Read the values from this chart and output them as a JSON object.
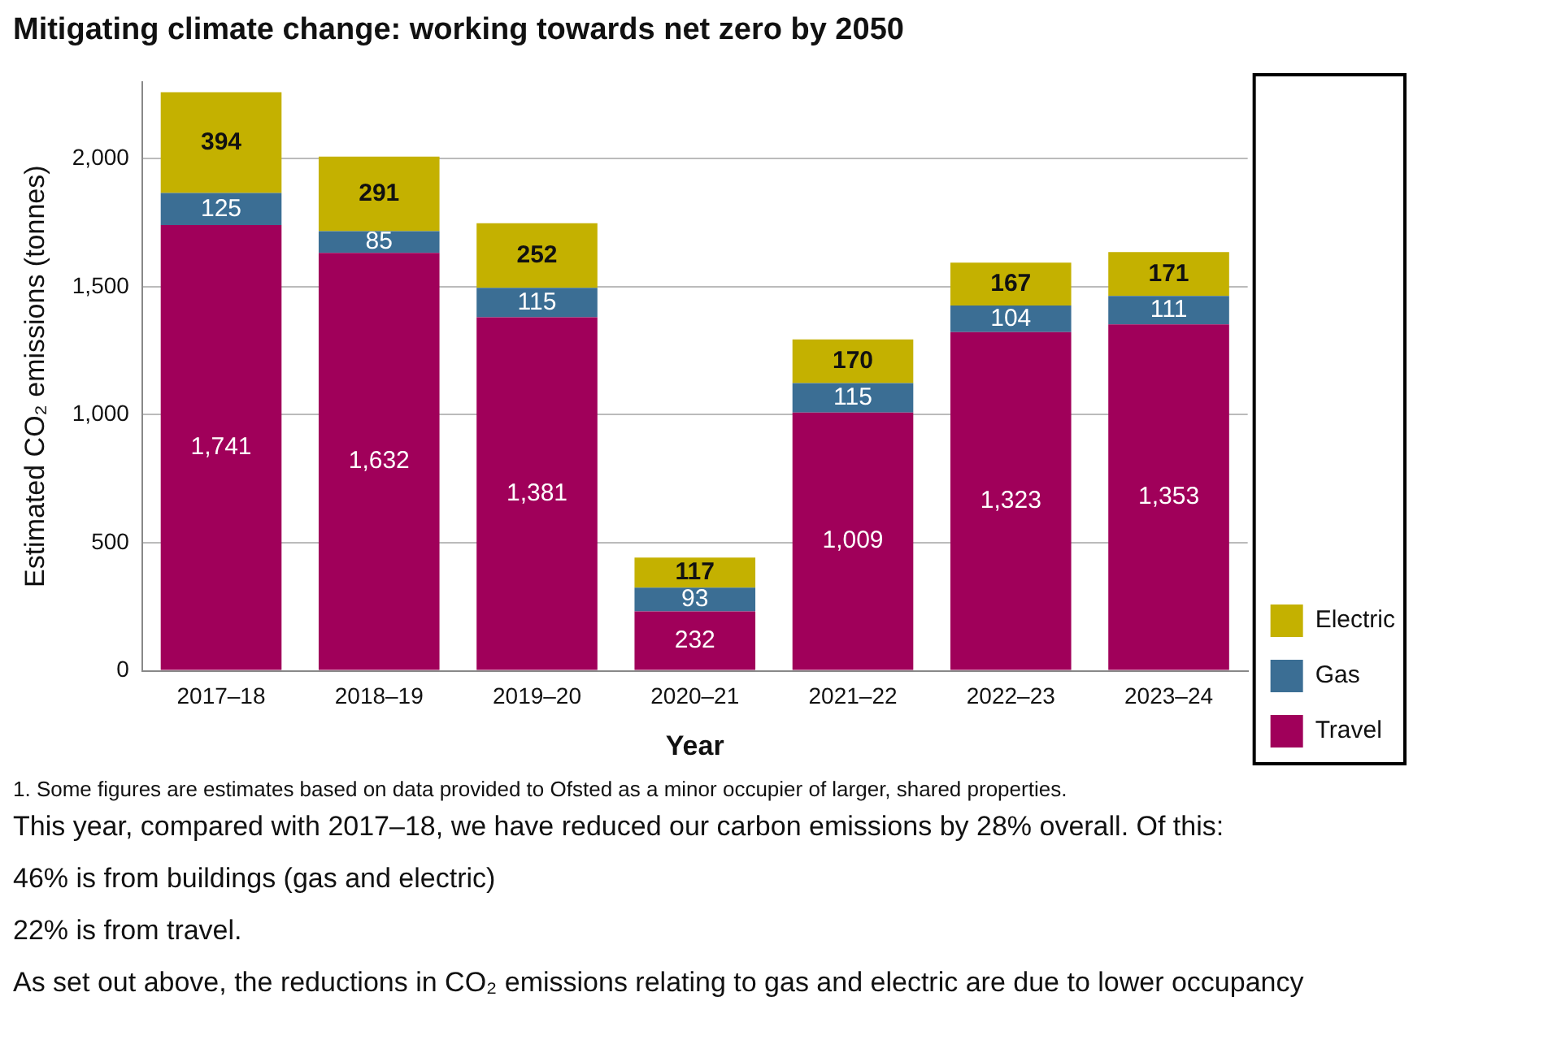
{
  "chart_data": {
    "type": "bar",
    "title": "Mitigating climate change: working towards net zero by 2050",
    "xlabel": "Year",
    "ylabel": "Estimated CO₂ emissions (tonnes)",
    "categories": [
      "2017–18",
      "2018–19",
      "2019–20",
      "2020–21",
      "2021–22",
      "2022–23",
      "2023–24"
    ],
    "series": [
      {
        "name": "Travel",
        "color": "#a0005a",
        "values": [
          1741,
          1632,
          1381,
          232,
          1009,
          1323,
          1353
        ],
        "value_labels": [
          "1,741",
          "1,632",
          "1,381",
          "232",
          "1,009",
          "1,323",
          "1,353"
        ]
      },
      {
        "name": "Gas",
        "color": "#3b6e94",
        "values": [
          125,
          85,
          115,
          93,
          115,
          104,
          111
        ],
        "value_labels": [
          "125",
          "85",
          "115",
          "93",
          "115",
          "104",
          "111"
        ]
      },
      {
        "name": "Electric",
        "color": "#c4b100",
        "values": [
          394,
          291,
          252,
          117,
          170,
          167,
          171
        ],
        "value_labels": [
          "394",
          "291",
          "252",
          "117",
          "170",
          "167",
          "171"
        ]
      }
    ],
    "stacked": true,
    "ylim": [
      0,
      2300
    ],
    "yticks": [
      0,
      500,
      {
        "value": 1000,
        "label": "1,000"
      },
      {
        "value": 1500,
        "label": "1,500"
      },
      {
        "value": 2000,
        "label": "2,000"
      }
    ],
    "grid": "y",
    "legend": "bottom right",
    "annotations": [
      "1. Some figures are estimates based on data provided to Ofsted as a minor occupier of larger, shared properties.",
      "This year, compared with 2017–18, we have reduced our carbon emissions by 28% overall. Of this:",
      "46% is from buildings (gas and electric)",
      "22% is from travel.",
      "As set out above, the reductions in CO₂ emissions relating to gas and electric are due to lower occupancy"
    ]
  }
}
